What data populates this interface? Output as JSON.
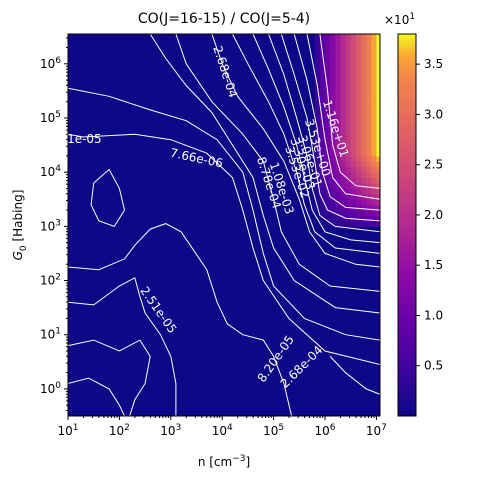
{
  "chart_data": {
    "type": "heatmap",
    "title": "CO(J=16-15) / CO(J=5-4)",
    "xlabel": "n [cm$^{-3}$]",
    "ylabel": "G$_0$ [Habing]",
    "x_scale": "log",
    "y_scale": "log",
    "xlim_log10": [
      1.0,
      7.07
    ],
    "ylim_log10": [
      -0.5,
      6.55
    ],
    "x_ticks": [
      {
        "exp": 1,
        "label": "1",
        "sup": "1"
      },
      {
        "exp": 2,
        "label": "2",
        "sup": "2"
      },
      {
        "exp": 3,
        "label": "3",
        "sup": "3"
      },
      {
        "exp": 4,
        "label": "4",
        "sup": "4"
      },
      {
        "exp": 5,
        "label": "5",
        "sup": "5"
      },
      {
        "exp": 6,
        "label": "6",
        "sup": "6"
      },
      {
        "exp": 7,
        "label": "7",
        "sup": "7"
      }
    ],
    "y_ticks": [
      {
        "exp": 0,
        "sup": "0"
      },
      {
        "exp": 1,
        "sup": "1"
      },
      {
        "exp": 2,
        "sup": "2"
      },
      {
        "exp": 3,
        "sup": "3"
      },
      {
        "exp": 4,
        "sup": "4"
      },
      {
        "exp": 5,
        "sup": "5"
      },
      {
        "exp": 6,
        "sup": "6"
      }
    ],
    "colorbar": {
      "cmap": "plasma",
      "min": 0.0,
      "max": 3.8,
      "multiplier": "×10",
      "multiplier_exp": "1",
      "ticks": [
        "0.5",
        "1.0",
        "1.5",
        "2.0",
        "2.5",
        "3.0",
        "3.5"
      ],
      "tick_values": [
        0.5,
        1.0,
        1.5,
        2.0,
        2.5,
        3.0,
        3.5
      ]
    },
    "grid": false,
    "contour_color": "#ffffff",
    "contour_labels": [
      {
        "text": "2.68e-04",
        "x": 4.05,
        "y": 5.85,
        "rot": 72
      },
      {
        "text": "1e-05",
        "x": 1.32,
        "y": 4.6,
        "rot": 0
      },
      {
        "text": "7.66e-06",
        "x": 3.5,
        "y": 4.25,
        "rot": 12
      },
      {
        "text": "2.51e-05",
        "x": 2.75,
        "y": 1.45,
        "rot": 55
      },
      {
        "text": "8.20e-05",
        "x": 5.05,
        "y": 0.55,
        "rot": -55
      },
      {
        "text": "2.68e-04",
        "x": 5.55,
        "y": 0.4,
        "rot": -45
      },
      {
        "text": "1.16e+01",
        "x": 6.2,
        "y": 4.8,
        "rot": 72
      },
      {
        "text": "3.53e+00",
        "x": 5.85,
        "y": 4.45,
        "rot": 72
      },
      {
        "text": "3.30e-03",
        "x": 5.55,
        "y": 4.15,
        "rot": 72
      },
      {
        "text": "3.53e-02",
        "x": 5.45,
        "y": 4.0,
        "rot": 72
      },
      {
        "text": "3.06e-01",
        "x": 5.7,
        "y": 4.2,
        "rot": 72
      },
      {
        "text": "8.78e-04",
        "x": 4.9,
        "y": 3.8,
        "rot": 72
      },
      {
        "text": "1.08e-03",
        "x": 5.15,
        "y": 3.7,
        "rot": 72
      }
    ]
  }
}
